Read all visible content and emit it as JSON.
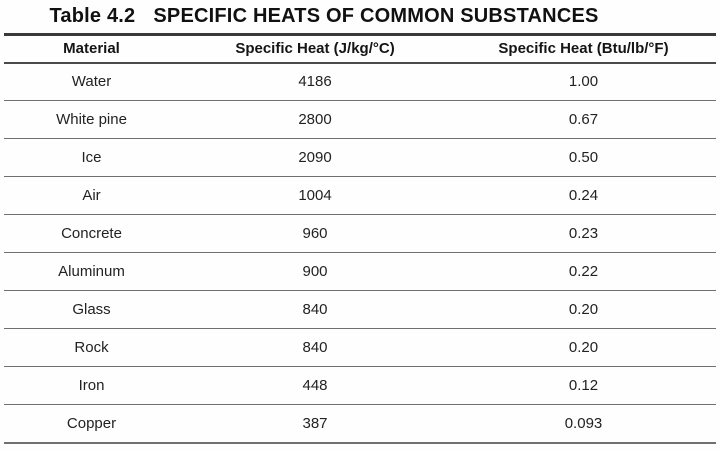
{
  "colors": {
    "background": "#fefefe",
    "text": "#1f1f1f",
    "rule_heavy_top": "#3a3a3a",
    "rule_header_bottom": "#4a4a4a",
    "rule_row_divider": "#6f6f6f",
    "rule_bottom": "#707070"
  },
  "title": {
    "table_number": "Table 4.2",
    "heading": "SPECIFIC HEATS OF COMMON SUBSTANCES"
  },
  "table": {
    "columns": [
      "Material",
      "Specific Heat (J/kg/°C)",
      "Specific Heat (Btu/lb/°F)"
    ],
    "rows": [
      {
        "material": "Water",
        "specific_heat_j_kg_c": "4186",
        "specific_heat_btu_lb_f": "1.00"
      },
      {
        "material": "White pine",
        "specific_heat_j_kg_c": "2800",
        "specific_heat_btu_lb_f": "0.67"
      },
      {
        "material": "Ice",
        "specific_heat_j_kg_c": "2090",
        "specific_heat_btu_lb_f": "0.50"
      },
      {
        "material": "Air",
        "specific_heat_j_kg_c": "1004",
        "specific_heat_btu_lb_f": "0.24"
      },
      {
        "material": "Concrete",
        "specific_heat_j_kg_c": "960",
        "specific_heat_btu_lb_f": "0.23"
      },
      {
        "material": "Aluminum",
        "specific_heat_j_kg_c": "900",
        "specific_heat_btu_lb_f": "0.22"
      },
      {
        "material": "Glass",
        "specific_heat_j_kg_c": "840",
        "specific_heat_btu_lb_f": "0.20"
      },
      {
        "material": "Rock",
        "specific_heat_j_kg_c": "840",
        "specific_heat_btu_lb_f": "0.20"
      },
      {
        "material": "Iron",
        "specific_heat_j_kg_c": "448",
        "specific_heat_btu_lb_f": "0.12"
      },
      {
        "material": "Copper",
        "specific_heat_j_kg_c": "387",
        "specific_heat_btu_lb_f": "0.093"
      }
    ]
  }
}
